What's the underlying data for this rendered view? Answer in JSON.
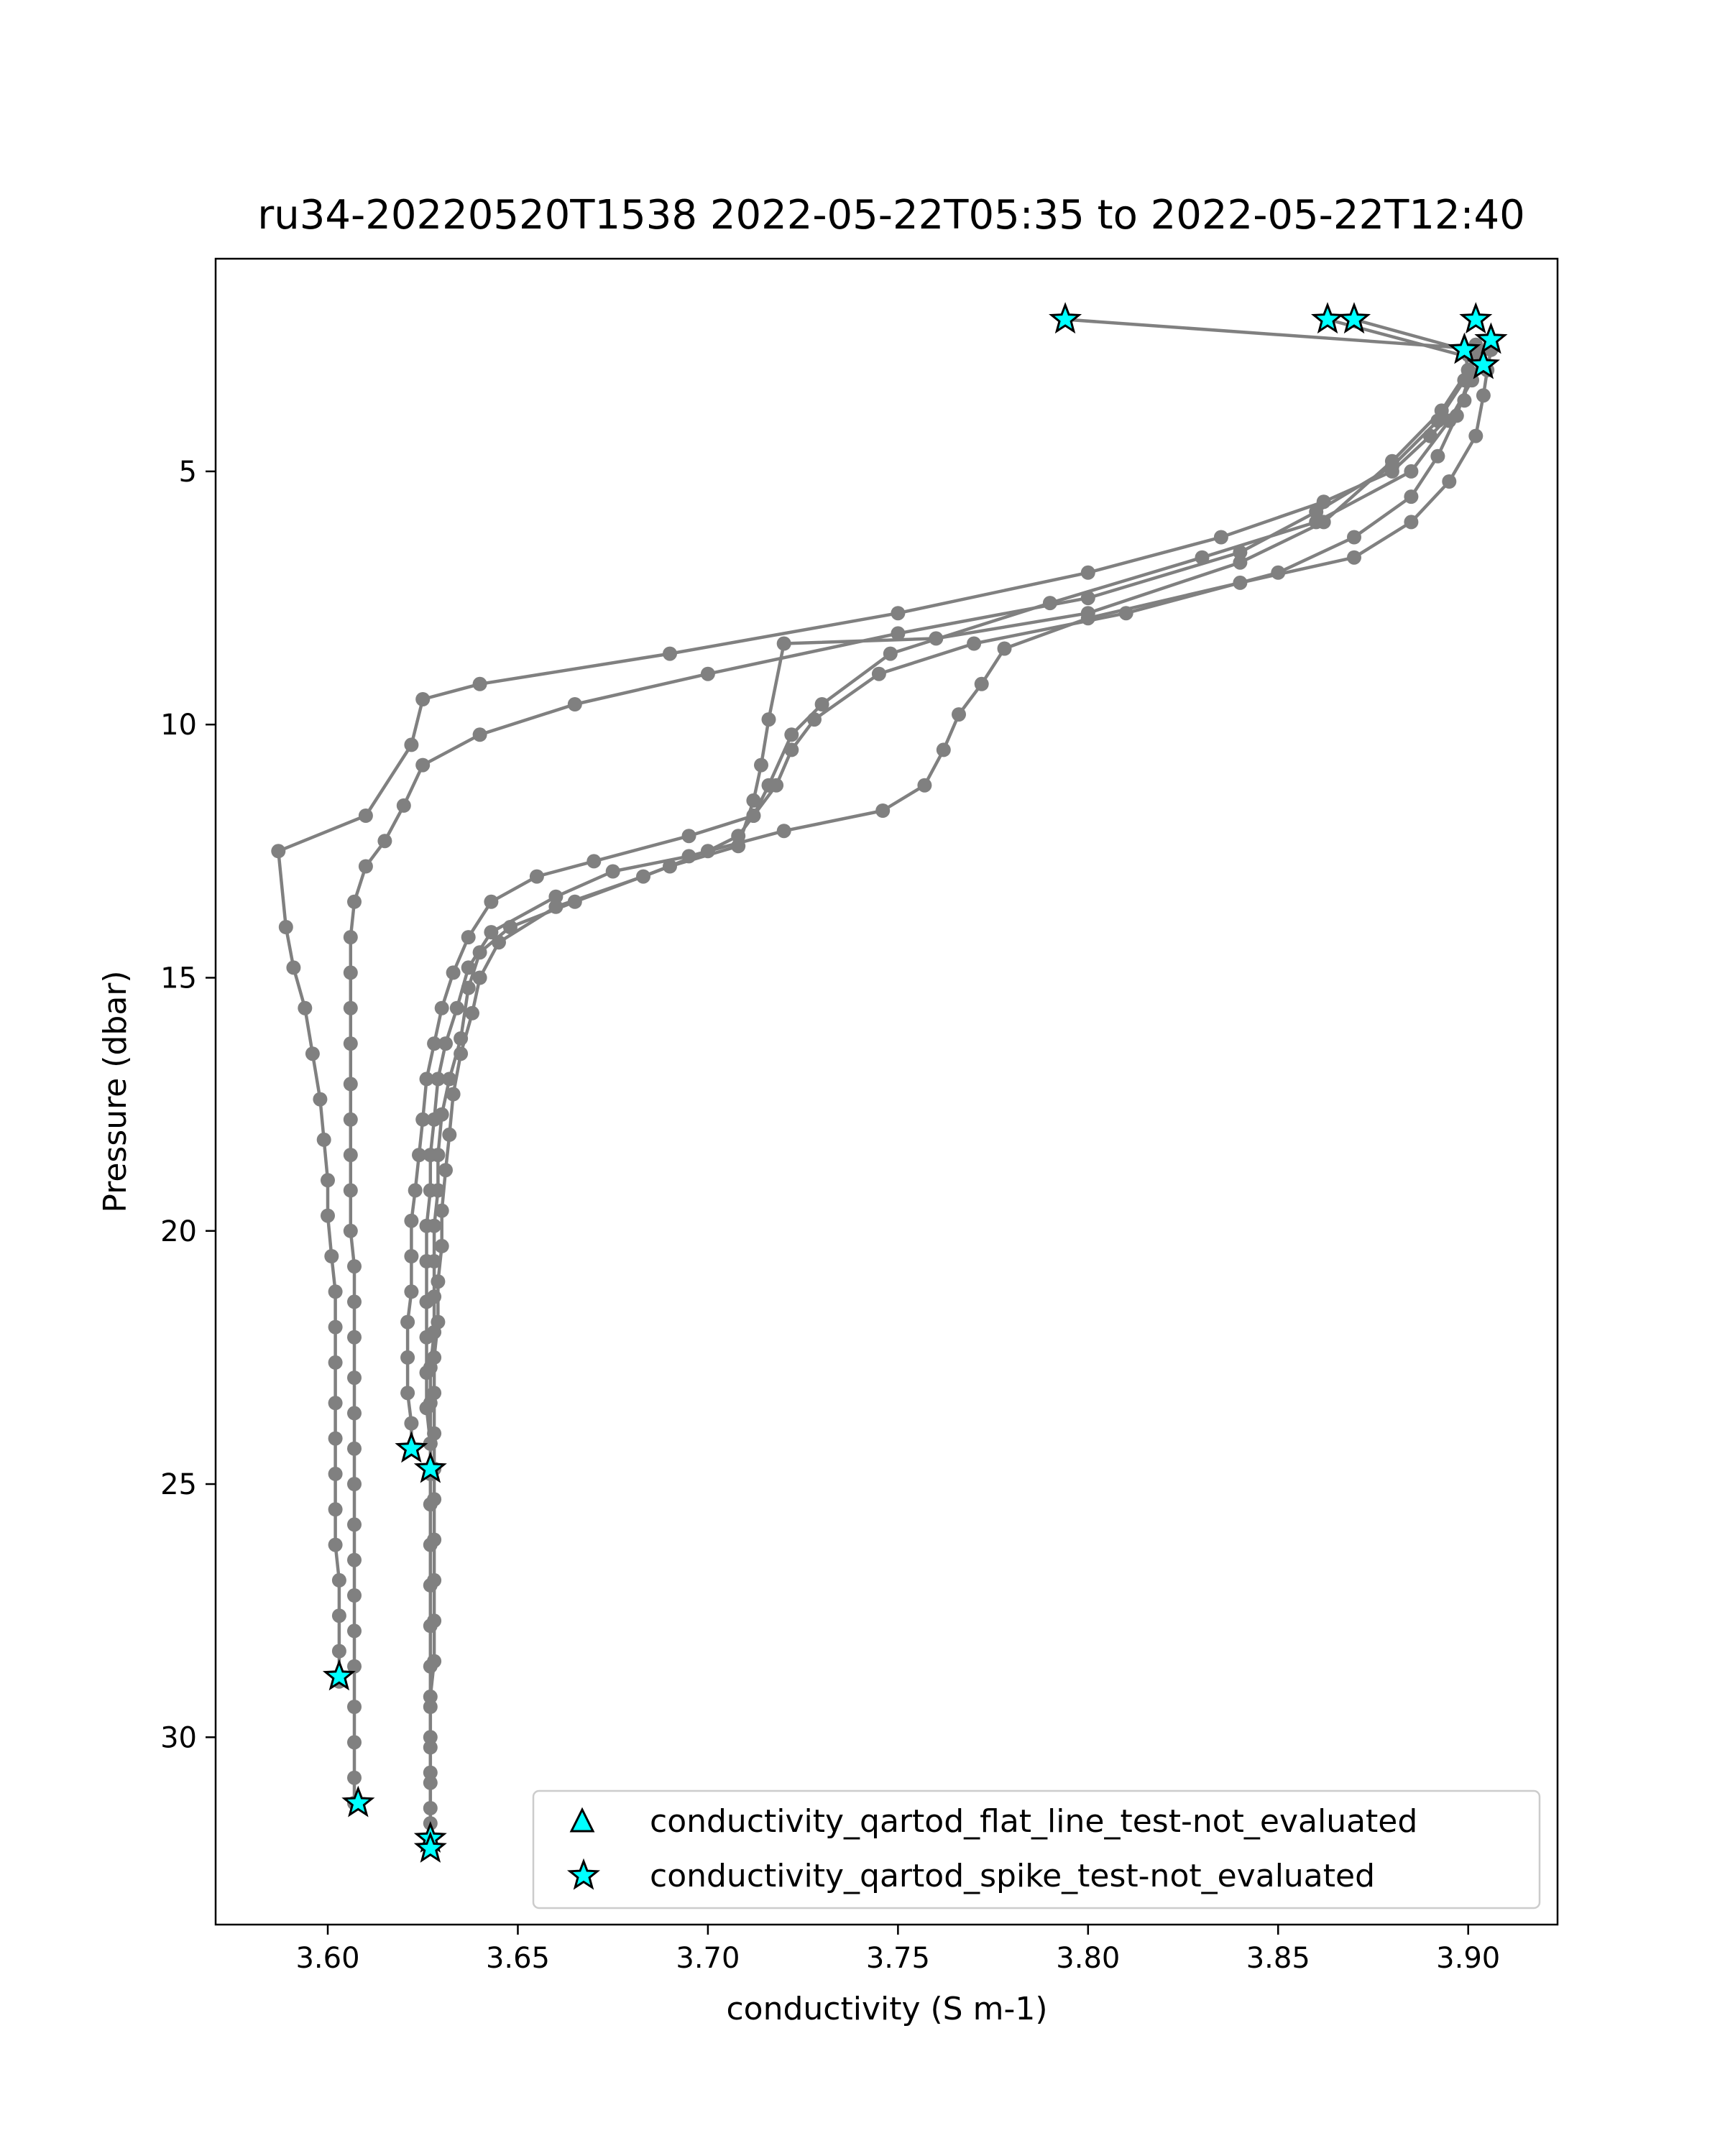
{
  "chart_data": {
    "type": "line",
    "title": "ru34-20220520T1538 2022-05-22T05:35 to 2022-05-22T12:40",
    "xlabel": "conductivity (S m-1)",
    "ylabel": "Pressure (dbar)",
    "xlim": [
      3.5705,
      3.9235
    ],
    "ylim": [
      33.7,
      0.8
    ],
    "y_inverted": true,
    "grid": false,
    "xticks": [
      3.6,
      3.65,
      3.7,
      3.75,
      3.8,
      3.85,
      3.9
    ],
    "xtick_labels": [
      "3.60",
      "3.65",
      "3.70",
      "3.75",
      "3.80",
      "3.85",
      "3.90"
    ],
    "yticks": [
      5,
      10,
      15,
      20,
      25,
      30
    ],
    "ytick_labels": [
      "5",
      "10",
      "15",
      "20",
      "25",
      "30"
    ],
    "line_color": "#808080",
    "flag_color": "#00ffff",
    "legend": {
      "position": "lower-right",
      "entries": [
        {
          "label": "conductivity_qartod_flat_line_test-not_evaluated",
          "marker": "triangle"
        },
        {
          "label": "conductivity_qartod_spike_test-not_evaluated",
          "marker": "star"
        }
      ]
    },
    "series": [
      {
        "points": [
          [
            3.627,
            32.2
          ],
          [
            3.627,
            31.7
          ],
          [
            3.627,
            30.9
          ],
          [
            3.627,
            30.2
          ],
          [
            3.627,
            29.4
          ],
          [
            3.627,
            28.6
          ],
          [
            3.627,
            27.8
          ],
          [
            3.627,
            27.0
          ],
          [
            3.627,
            26.2
          ],
          [
            3.627,
            25.4
          ],
          [
            3.627,
            24.8
          ],
          [
            3.627,
            24.2
          ],
          [
            3.627,
            23.4
          ],
          [
            3.627,
            22.7
          ],
          [
            3.628,
            22.0
          ],
          [
            3.628,
            21.3
          ],
          [
            3.628,
            20.6
          ],
          [
            3.628,
            19.9
          ],
          [
            3.629,
            19.2
          ],
          [
            3.629,
            18.5
          ],
          [
            3.63,
            17.7
          ],
          [
            3.632,
            17.0
          ],
          [
            3.635,
            16.2
          ],
          [
            3.637,
            15.2
          ],
          [
            3.64,
            14.5
          ],
          [
            3.648,
            14.0
          ],
          [
            3.665,
            13.5
          ],
          [
            3.69,
            12.8
          ],
          [
            3.708,
            12.4
          ],
          [
            3.712,
            11.5
          ],
          [
            3.714,
            10.8
          ],
          [
            3.716,
            9.9
          ],
          [
            3.72,
            8.4
          ],
          [
            3.76,
            8.3
          ],
          [
            3.8,
            7.8
          ],
          [
            3.84,
            6.8
          ],
          [
            3.862,
            6.0
          ],
          [
            3.88,
            4.8
          ],
          [
            3.893,
            3.8
          ],
          [
            3.9,
            3.0
          ],
          [
            3.899,
            2.6
          ],
          [
            3.87,
            2.0
          ]
        ]
      },
      {
        "points": [
          [
            3.627,
            32.0
          ],
          [
            3.627,
            31.4
          ],
          [
            3.627,
            30.7
          ],
          [
            3.627,
            30.0
          ],
          [
            3.627,
            29.2
          ],
          [
            3.628,
            28.5
          ],
          [
            3.628,
            27.7
          ],
          [
            3.628,
            26.9
          ],
          [
            3.628,
            26.1
          ],
          [
            3.628,
            25.3
          ],
          [
            3.628,
            24.7
          ],
          [
            3.628,
            24.0
          ],
          [
            3.628,
            23.2
          ],
          [
            3.628,
            22.5
          ],
          [
            3.629,
            21.8
          ],
          [
            3.629,
            21.0
          ],
          [
            3.63,
            20.3
          ],
          [
            3.63,
            19.6
          ],
          [
            3.631,
            18.8
          ],
          [
            3.632,
            18.1
          ],
          [
            3.633,
            17.3
          ],
          [
            3.635,
            16.5
          ],
          [
            3.638,
            15.7
          ],
          [
            3.64,
            15.0
          ],
          [
            3.645,
            14.3
          ],
          [
            3.66,
            13.6
          ],
          [
            3.683,
            13.0
          ],
          [
            3.7,
            12.5
          ],
          [
            3.708,
            12.2
          ],
          [
            3.712,
            11.8
          ],
          [
            3.716,
            11.2
          ],
          [
            3.722,
            10.2
          ],
          [
            3.73,
            9.6
          ],
          [
            3.748,
            8.6
          ],
          [
            3.79,
            7.6
          ],
          [
            3.83,
            6.7
          ],
          [
            3.86,
            6.0
          ],
          [
            3.885,
            5.0
          ],
          [
            3.895,
            4.0
          ],
          [
            3.901,
            3.2
          ],
          [
            3.903,
            2.8
          ],
          [
            3.863,
            2.0
          ]
        ]
      },
      {
        "points": [
          [
            3.627,
            24.7
          ],
          [
            3.627,
            24.2
          ],
          [
            3.626,
            23.5
          ],
          [
            3.626,
            22.8
          ],
          [
            3.626,
            22.1
          ],
          [
            3.626,
            21.4
          ],
          [
            3.626,
            20.6
          ],
          [
            3.626,
            19.9
          ],
          [
            3.627,
            19.2
          ],
          [
            3.627,
            18.5
          ],
          [
            3.628,
            17.8
          ],
          [
            3.629,
            17.0
          ],
          [
            3.631,
            16.3
          ],
          [
            3.634,
            15.6
          ],
          [
            3.637,
            14.8
          ],
          [
            3.643,
            14.1
          ],
          [
            3.66,
            13.4
          ],
          [
            3.675,
            12.9
          ],
          [
            3.695,
            12.6
          ],
          [
            3.72,
            12.1
          ],
          [
            3.746,
            11.7
          ],
          [
            3.757,
            11.2
          ],
          [
            3.762,
            10.5
          ],
          [
            3.766,
            9.8
          ],
          [
            3.772,
            9.2
          ],
          [
            3.778,
            8.5
          ],
          [
            3.8,
            7.9
          ],
          [
            3.84,
            7.2
          ],
          [
            3.87,
            6.7
          ],
          [
            3.885,
            6.0
          ],
          [
            3.895,
            5.2
          ],
          [
            3.902,
            4.3
          ],
          [
            3.904,
            3.5
          ],
          [
            3.905,
            3.0
          ],
          [
            3.906,
            2.6
          ],
          [
            3.794,
            2.0
          ]
        ]
      },
      {
        "points": [
          [
            3.622,
            24.3
          ],
          [
            3.622,
            23.8
          ],
          [
            3.621,
            23.2
          ],
          [
            3.621,
            22.5
          ],
          [
            3.621,
            21.8
          ],
          [
            3.622,
            21.2
          ],
          [
            3.622,
            20.5
          ],
          [
            3.622,
            19.8
          ],
          [
            3.623,
            19.2
          ],
          [
            3.624,
            18.5
          ],
          [
            3.625,
            17.8
          ],
          [
            3.626,
            17.0
          ],
          [
            3.628,
            16.3
          ],
          [
            3.63,
            15.6
          ],
          [
            3.633,
            14.9
          ],
          [
            3.637,
            14.2
          ],
          [
            3.643,
            13.5
          ],
          [
            3.655,
            13.0
          ],
          [
            3.67,
            12.7
          ],
          [
            3.695,
            12.2
          ],
          [
            3.712,
            11.8
          ],
          [
            3.718,
            11.2
          ],
          [
            3.722,
            10.5
          ],
          [
            3.728,
            9.9
          ],
          [
            3.745,
            9.0
          ],
          [
            3.77,
            8.4
          ],
          [
            3.81,
            7.8
          ],
          [
            3.85,
            7.0
          ],
          [
            3.87,
            6.3
          ],
          [
            3.885,
            5.5
          ],
          [
            3.892,
            4.7
          ],
          [
            3.897,
            3.9
          ],
          [
            3.9,
            3.2
          ],
          [
            3.902,
            2.5
          ]
        ]
      },
      {
        "points": [
          [
            3.607,
            31.3
          ],
          [
            3.607,
            30.8
          ],
          [
            3.607,
            30.1
          ],
          [
            3.607,
            29.4
          ],
          [
            3.607,
            28.6
          ],
          [
            3.607,
            27.9
          ],
          [
            3.607,
            27.2
          ],
          [
            3.607,
            26.5
          ],
          [
            3.607,
            25.8
          ],
          [
            3.607,
            25.0
          ],
          [
            3.607,
            24.3
          ],
          [
            3.607,
            23.6
          ],
          [
            3.607,
            22.9
          ],
          [
            3.607,
            22.1
          ],
          [
            3.607,
            21.4
          ],
          [
            3.607,
            20.7
          ],
          [
            3.606,
            20.0
          ],
          [
            3.606,
            19.2
          ],
          [
            3.606,
            18.5
          ],
          [
            3.606,
            17.8
          ],
          [
            3.606,
            17.1
          ],
          [
            3.606,
            16.3
          ],
          [
            3.606,
            15.6
          ],
          [
            3.606,
            14.9
          ],
          [
            3.606,
            14.2
          ],
          [
            3.607,
            13.5
          ],
          [
            3.61,
            12.8
          ],
          [
            3.615,
            12.3
          ],
          [
            3.62,
            11.6
          ],
          [
            3.625,
            10.8
          ],
          [
            3.64,
            10.2
          ],
          [
            3.665,
            9.6
          ],
          [
            3.7,
            9.0
          ],
          [
            3.75,
            8.2
          ],
          [
            3.8,
            7.5
          ],
          [
            3.84,
            6.6
          ],
          [
            3.86,
            5.8
          ],
          [
            3.88,
            4.9
          ],
          [
            3.892,
            4.0
          ],
          [
            3.899,
            3.2
          ],
          [
            3.9,
            2.7
          ]
        ]
      },
      {
        "points": [
          [
            3.603,
            28.9
          ],
          [
            3.603,
            28.3
          ],
          [
            3.603,
            27.6
          ],
          [
            3.603,
            26.9
          ],
          [
            3.602,
            26.2
          ],
          [
            3.602,
            25.5
          ],
          [
            3.602,
            24.8
          ],
          [
            3.602,
            24.1
          ],
          [
            3.602,
            23.4
          ],
          [
            3.602,
            22.6
          ],
          [
            3.602,
            21.9
          ],
          [
            3.602,
            21.2
          ],
          [
            3.601,
            20.5
          ],
          [
            3.6,
            19.7
          ],
          [
            3.6,
            19.0
          ],
          [
            3.599,
            18.2
          ],
          [
            3.598,
            17.4
          ],
          [
            3.596,
            16.5
          ],
          [
            3.594,
            15.6
          ],
          [
            3.591,
            14.8
          ],
          [
            3.589,
            14.0
          ],
          [
            3.587,
            12.5
          ],
          [
            3.61,
            11.8
          ],
          [
            3.622,
            10.4
          ],
          [
            3.625,
            9.5
          ],
          [
            3.64,
            9.2
          ],
          [
            3.69,
            8.6
          ],
          [
            3.75,
            7.8
          ],
          [
            3.8,
            7.0
          ],
          [
            3.835,
            6.3
          ],
          [
            3.862,
            5.6
          ],
          [
            3.88,
            5.0
          ],
          [
            3.89,
            4.3
          ],
          [
            3.899,
            3.6
          ],
          [
            3.9,
            3.0
          ],
          [
            3.902,
            2.6
          ]
        ]
      }
    ],
    "flag_points": [
      [
        3.794,
        2.0
      ],
      [
        3.863,
        2.0
      ],
      [
        3.87,
        2.0
      ],
      [
        3.902,
        2.0
      ],
      [
        3.899,
        2.6
      ],
      [
        3.906,
        2.4
      ],
      [
        3.904,
        2.9
      ],
      [
        3.622,
        24.3
      ],
      [
        3.627,
        24.7
      ],
      [
        3.603,
        28.8
      ],
      [
        3.608,
        31.3
      ],
      [
        3.627,
        32.0
      ],
      [
        3.627,
        32.2
      ]
    ]
  }
}
